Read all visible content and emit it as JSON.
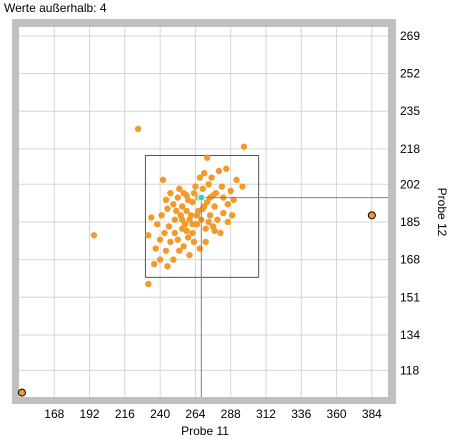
{
  "status": {
    "outliers_label": "Werte außerhalb: 4"
  },
  "colors": {
    "frame": "#c0c0c0",
    "grid": "#d6d6d6",
    "point": "#f29a2b",
    "selected_point": "#2fd3c7",
    "outlier_marker": "#f29a2b",
    "crosshair": "#808080",
    "box": "#555555"
  },
  "chart_data": {
    "type": "scatter",
    "xlabel": "Probe 11",
    "ylabel": "Probe 12",
    "xlim": [
      144,
      395
    ],
    "ylim": [
      106,
      273
    ],
    "x_ticks": [
      168,
      192,
      216,
      240,
      264,
      288,
      312,
      336,
      360,
      384
    ],
    "y_ticks": [
      118,
      134,
      151,
      168,
      185,
      202,
      218,
      235,
      252,
      269
    ],
    "outliers_count": 4,
    "selected_point": {
      "x": 268,
      "y": 196
    },
    "box": {
      "x_min": 230,
      "x_max": 307,
      "y_min": 160,
      "y_max": 215
    },
    "outlier_markers": [
      {
        "x": 146,
        "y": 108
      },
      {
        "x": 384,
        "y": 188
      }
    ],
    "points": [
      [
        225,
        227
      ],
      [
        195,
        179
      ],
      [
        232,
        157
      ],
      [
        297,
        219
      ],
      [
        272,
        214
      ],
      [
        285,
        209
      ],
      [
        234,
        187
      ],
      [
        232,
        179
      ],
      [
        237,
        173
      ],
      [
        245,
        191
      ],
      [
        242,
        204
      ],
      [
        253,
        200
      ],
      [
        258,
        197
      ],
      [
        262,
        194
      ],
      [
        266,
        190
      ],
      [
        270,
        192
      ],
      [
        274,
        196
      ],
      [
        278,
        198
      ],
      [
        282,
        201
      ],
      [
        286,
        193
      ],
      [
        289,
        188
      ],
      [
        292,
        204
      ],
      [
        296,
        201
      ],
      [
        275,
        205
      ],
      [
        280,
        208
      ],
      [
        260,
        186
      ],
      [
        255,
        182
      ],
      [
        250,
        180
      ],
      [
        247,
        176
      ],
      [
        244,
        172
      ],
      [
        240,
        168
      ],
      [
        236,
        166
      ],
      [
        262,
        180
      ],
      [
        265,
        184
      ],
      [
        268,
        186
      ],
      [
        271,
        182
      ],
      [
        274,
        188
      ],
      [
        277,
        192
      ],
      [
        260,
        170
      ],
      [
        256,
        174
      ],
      [
        252,
        177
      ],
      [
        258,
        190
      ],
      [
        263,
        198
      ],
      [
        269,
        200
      ],
      [
        273,
        202
      ],
      [
        266,
        196
      ],
      [
        261,
        188
      ],
      [
        257,
        184
      ],
      [
        254,
        188
      ],
      [
        250,
        186
      ],
      [
        246,
        183
      ],
      [
        243,
        180
      ],
      [
        240,
        177
      ],
      [
        249,
        193
      ],
      [
        252,
        196
      ],
      [
        247,
        198
      ],
      [
        244,
        195
      ],
      [
        264,
        201
      ],
      [
        267,
        205
      ],
      [
        270,
        207
      ],
      [
        276,
        183
      ],
      [
        279,
        186
      ],
      [
        283,
        189
      ],
      [
        286,
        185
      ],
      [
        281,
        180
      ],
      [
        271,
        176
      ],
      [
        267,
        173
      ],
      [
        263,
        176
      ],
      [
        259,
        178
      ],
      [
        253,
        172
      ],
      [
        249,
        168
      ],
      [
        245,
        165
      ],
      [
        238,
        184
      ],
      [
        241,
        188
      ],
      [
        255,
        192
      ],
      [
        259,
        195
      ],
      [
        265,
        188
      ],
      [
        269,
        191
      ],
      [
        273,
        185
      ],
      [
        277,
        181
      ],
      [
        272,
        194
      ],
      [
        276,
        197
      ],
      [
        283,
        196
      ],
      [
        288,
        199
      ],
      [
        290,
        195
      ],
      [
        262,
        184
      ],
      [
        258,
        181
      ],
      [
        255,
        186
      ],
      [
        251,
        190
      ],
      [
        256,
        198
      ]
    ]
  }
}
